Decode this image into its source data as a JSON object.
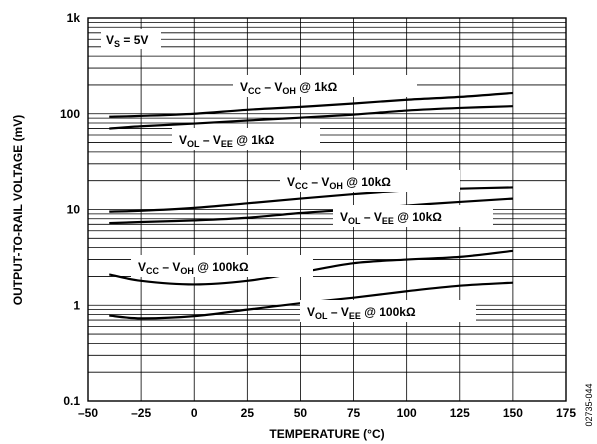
{
  "chart_data": {
    "type": "line",
    "x_scale": "linear",
    "y_scale": "log",
    "xlabel": "TEMPERATURE (°C)",
    "ylabel": "OUTPUT-TO-RAIL VOLTAGE (mV)",
    "xlim": [
      -50,
      175
    ],
    "ylim": [
      0.1,
      1000
    ],
    "x_ticks": [
      -50,
      -25,
      0,
      25,
      50,
      75,
      100,
      125,
      150,
      175
    ],
    "x_tick_labels": [
      "–50",
      "–25",
      "0",
      "25",
      "50",
      "75",
      "100",
      "125",
      "150",
      "175"
    ],
    "y_ticks": [
      0.1,
      1,
      10,
      100,
      1000
    ],
    "y_tick_labels": [
      "0.1",
      "1",
      "10",
      "100",
      "1k"
    ],
    "grid": true,
    "condition": {
      "main": "V",
      "sub": "S",
      "rest": " = 5V"
    },
    "figure_code": "02735-044",
    "series": [
      {
        "label": {
          "a": "V",
          "a_sub": "CC",
          "mid": " – V",
          "b_sub": "OH",
          "tail": " @ 1kΩ"
        },
        "x": [
          -40,
          -25,
          0,
          25,
          50,
          75,
          100,
          125,
          150
        ],
        "values": [
          93,
          95,
          100,
          110,
          118,
          128,
          140,
          150,
          165
        ]
      },
      {
        "label": {
          "a": "V",
          "a_sub": "OL",
          "mid": " – V",
          "b_sub": "EE",
          "tail": " @ 1kΩ"
        },
        "x": [
          -40,
          -25,
          0,
          25,
          50,
          75,
          100,
          125,
          150
        ],
        "values": [
          70,
          74,
          79,
          85,
          91,
          98,
          108,
          115,
          120
        ]
      },
      {
        "label": {
          "a": "V",
          "a_sub": "CC",
          "mid": " – V",
          "b_sub": "OH",
          "tail": " @ 10kΩ"
        },
        "x": [
          -40,
          -25,
          0,
          25,
          50,
          75,
          100,
          125,
          150
        ],
        "values": [
          9.5,
          9.7,
          10.4,
          11.6,
          13,
          14.5,
          15.8,
          16.5,
          17
        ]
      },
      {
        "label": {
          "a": "V",
          "a_sub": "OL",
          "mid": " – V",
          "b_sub": "EE",
          "tail": " @ 10kΩ"
        },
        "x": [
          -40,
          -25,
          0,
          25,
          50,
          75,
          100,
          125,
          150
        ],
        "values": [
          7.2,
          7.4,
          7.7,
          8.2,
          9.2,
          10,
          11,
          12,
          13
        ]
      },
      {
        "label": {
          "a": "V",
          "a_sub": "CC",
          "mid": " – V",
          "b_sub": "OH",
          "tail": " @ 100kΩ"
        },
        "x": [
          -40,
          -25,
          0,
          25,
          50,
          75,
          100,
          125,
          150
        ],
        "values": [
          2.1,
          1.8,
          1.65,
          1.8,
          2.2,
          2.75,
          3.0,
          3.2,
          3.7
        ]
      },
      {
        "label": {
          "a": "V",
          "a_sub": "OL",
          "mid": " – V",
          "b_sub": "EE",
          "tail": " @ 100kΩ"
        },
        "x": [
          -40,
          -25,
          0,
          25,
          50,
          75,
          100,
          125,
          150
        ],
        "values": [
          0.78,
          0.73,
          0.77,
          0.9,
          1.05,
          1.2,
          1.4,
          1.6,
          1.72
        ]
      }
    ]
  }
}
